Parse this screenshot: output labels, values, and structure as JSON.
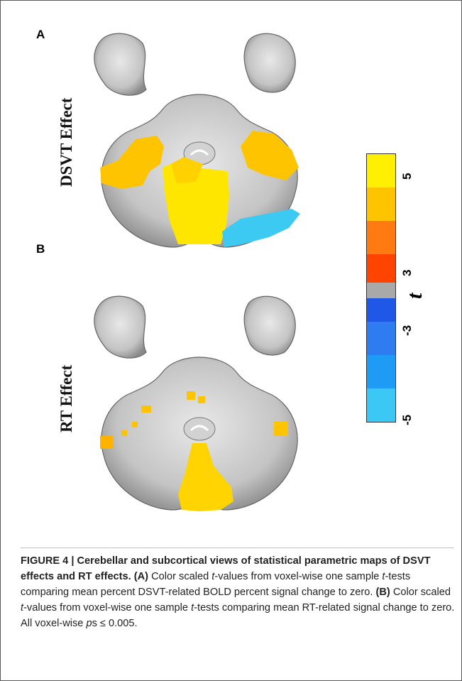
{
  "figure": {
    "panel_a_letter": "A",
    "panel_b_letter": "B",
    "panel_a_label": "DSVT Effect",
    "panel_b_label": "RT Effect"
  },
  "colorbar": {
    "variable": "t",
    "tick_5": "5",
    "tick_3": "3",
    "tick_neg3": "-3",
    "tick_neg5": "-5",
    "segments": [
      "#ffef00",
      "#ffc400",
      "#ff7a10",
      "#ff4400",
      "#a9a9a9",
      "#1f58e6",
      "#2f7cf0",
      "#1d9bf5",
      "#3cc8f5"
    ]
  },
  "caption": {
    "lead": "FIGURE 4 | Cerebellar and subcortical views of statistical parametric maps of DSVT effects and RT effects.",
    "a_tag": "(A)",
    "a_1": " Color scaled ",
    "a_t": "t",
    "a_2": "-values from voxel-wise one sample ",
    "a_t2": "t",
    "a_3": "-tests comparing mean percent DSVT-related BOLD percent signal change to zero. ",
    "b_tag": "(B)",
    "b_1": " Color scaled ",
    "b_t": "t",
    "b_2": "-values from voxel-wise one sample ",
    "b_t2": "t",
    "b_3": "-tests comparing mean RT-related signal change to zero. All voxel-wise ",
    "p": "p",
    "end": "s ≤ 0.005."
  },
  "colors": {
    "activation_yellow": "#ffe000",
    "activation_orange": "#ffb800",
    "deactivation_blue": "#3ccaf2",
    "brain_grey": "#b9b9b9"
  }
}
